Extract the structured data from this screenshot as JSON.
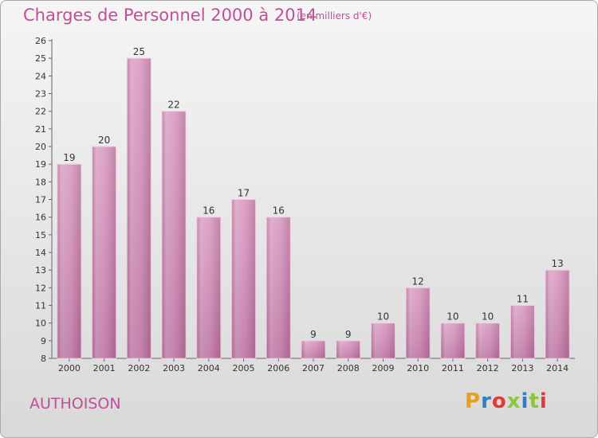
{
  "header": {
    "title": "Charges de Personnel 2000 à 2014",
    "subtitle": "(en milliers d'€)"
  },
  "footer": {
    "commune": "AUTHOISON",
    "logo": "Proxiti",
    "logo_colors": [
      "#e8a020",
      "#2f7fc8",
      "#e03a3a",
      "#8cc63f",
      "#2f7fc8",
      "#8cc63f",
      "#e03a3a"
    ]
  },
  "colors": {
    "bar": "#d98cbb",
    "bar_edge": "#f3c8e0",
    "accent": "#bf4f96"
  },
  "chart_data": {
    "type": "bar",
    "title": "Charges de Personnel 2000 à 2014",
    "subtitle": "(en milliers d'€)",
    "xlabel": "",
    "ylabel": "",
    "categories": [
      "2000",
      "2001",
      "2002",
      "2003",
      "2004",
      "2005",
      "2006",
      "2007",
      "2008",
      "2009",
      "2010",
      "2011",
      "2012",
      "2013",
      "2014"
    ],
    "values": [
      19,
      20,
      25,
      22,
      16,
      17,
      16,
      9,
      9,
      10,
      12,
      10,
      10,
      11,
      13
    ],
    "ylim": [
      8,
      26
    ],
    "yticks": [
      8,
      9,
      10,
      11,
      12,
      13,
      14,
      15,
      16,
      17,
      18,
      19,
      20,
      21,
      22,
      23,
      24,
      25,
      26
    ],
    "grid": false,
    "data_labels": true
  }
}
